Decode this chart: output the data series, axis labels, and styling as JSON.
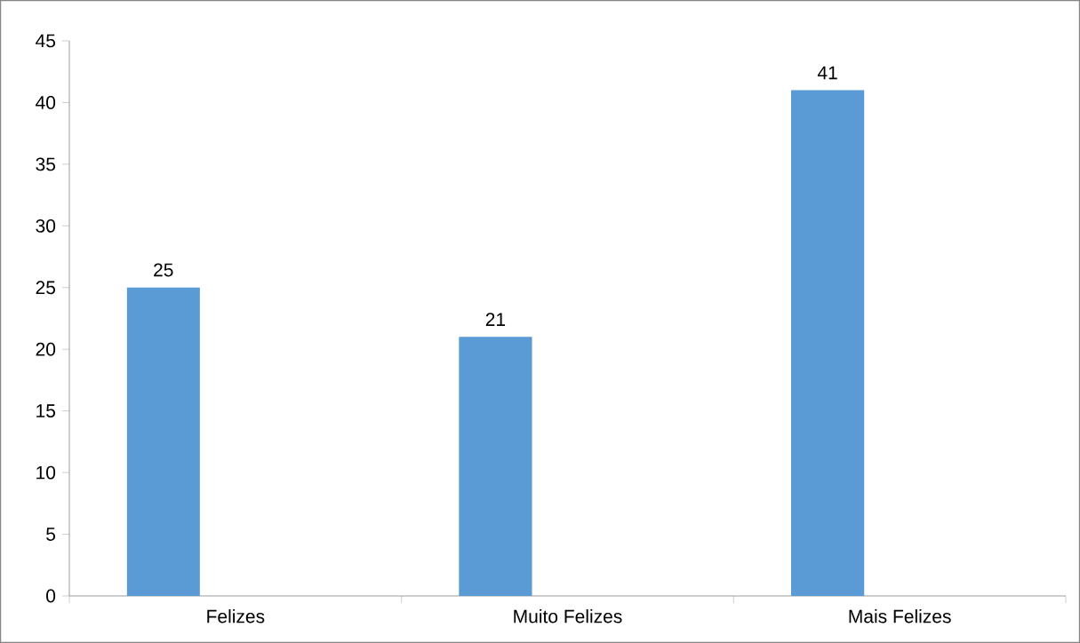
{
  "chart_data": {
    "type": "bar",
    "categories": [
      "Felizes",
      "Muito Felizes",
      "Mais Felizes"
    ],
    "values": [
      25,
      21,
      41
    ],
    "color": "#5b9bd5",
    "ylim": [
      0,
      45
    ],
    "yticks": [
      0,
      5,
      10,
      15,
      20,
      25,
      30,
      35,
      40,
      45
    ],
    "data_labels": true
  }
}
